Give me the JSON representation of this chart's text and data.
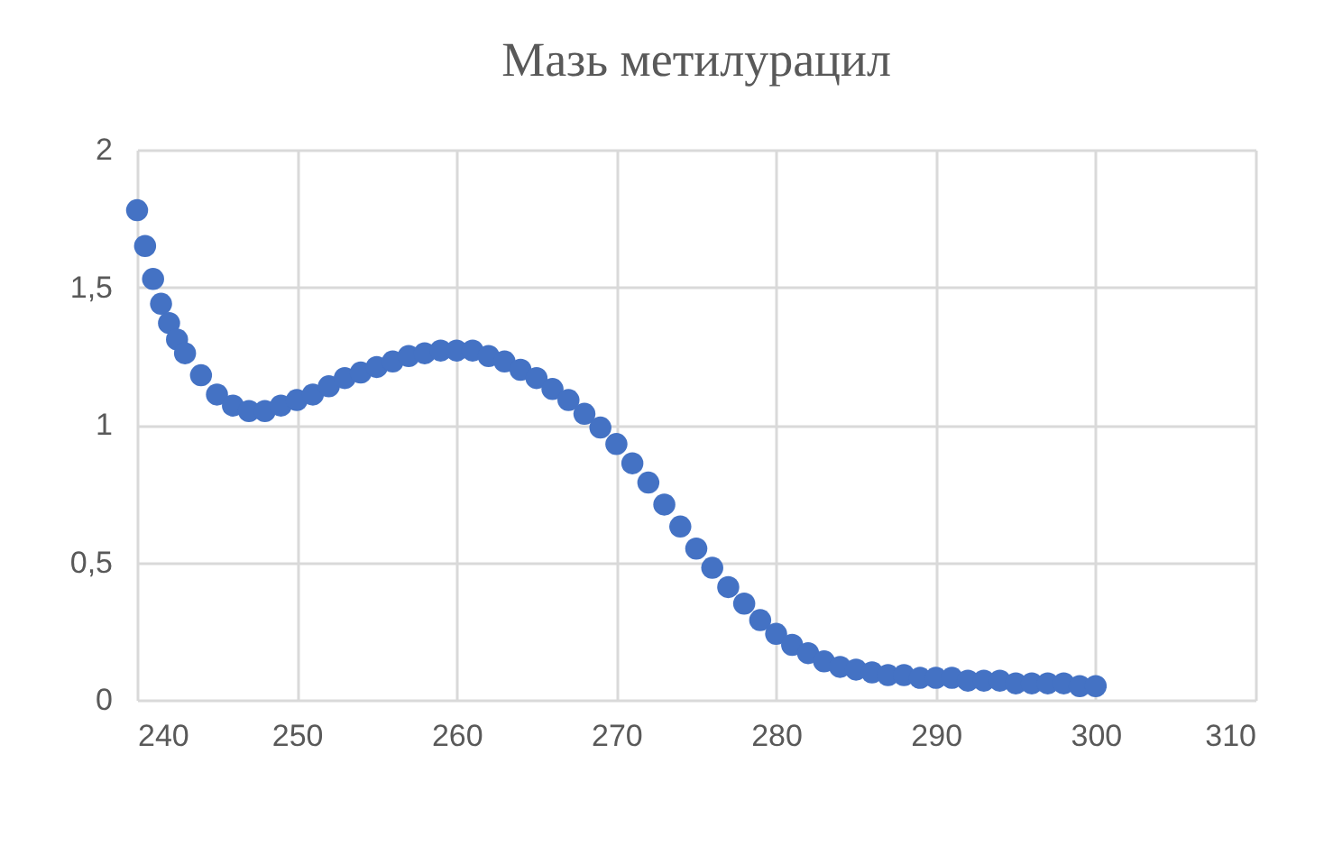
{
  "chart_data": {
    "type": "scatter",
    "title": "Мазь метилурацил",
    "x": [
      240,
      240.5,
      241,
      241.5,
      242,
      242.5,
      243,
      244,
      245,
      246,
      247,
      248,
      249,
      250,
      251,
      252,
      253,
      254,
      255,
      256,
      257,
      258,
      259,
      260,
      261,
      262,
      263,
      264,
      265,
      266,
      267,
      268,
      269,
      270,
      271,
      272,
      273,
      274,
      275,
      276,
      277,
      278,
      279,
      280,
      281,
      282,
      283,
      284,
      285,
      286,
      287,
      288,
      289,
      290,
      291,
      292,
      293,
      294,
      295,
      296,
      297,
      298,
      299,
      300
    ],
    "series": [
      {
        "color": "#4472c4",
        "values": [
          1.78,
          1.65,
          1.53,
          1.44,
          1.37,
          1.31,
          1.26,
          1.18,
          1.11,
          1.07,
          1.05,
          1.05,
          1.07,
          1.09,
          1.11,
          1.14,
          1.17,
          1.19,
          1.21,
          1.23,
          1.25,
          1.26,
          1.27,
          1.27,
          1.27,
          1.25,
          1.23,
          1.2,
          1.17,
          1.13,
          1.09,
          1.04,
          0.99,
          0.93,
          0.86,
          0.79,
          0.71,
          0.63,
          0.55,
          0.48,
          0.41,
          0.35,
          0.29,
          0.24,
          0.2,
          0.17,
          0.14,
          0.12,
          0.11,
          0.1,
          0.09,
          0.09,
          0.08,
          0.08,
          0.08,
          0.07,
          0.07,
          0.07,
          0.06,
          0.06,
          0.06,
          0.06,
          0.05,
          0.05
        ]
      }
    ],
    "xlim": [
      240,
      310
    ],
    "xticks": [
      240,
      250,
      260,
      270,
      280,
      290,
      300,
      310
    ],
    "ylim": [
      0,
      2
    ],
    "yticks": [
      0,
      {
        "value": 0.5,
        "label": "0,5"
      },
      1,
      {
        "value": 1.5,
        "label": "1,5"
      },
      2
    ],
    "grid": true,
    "marker": "circle"
  }
}
